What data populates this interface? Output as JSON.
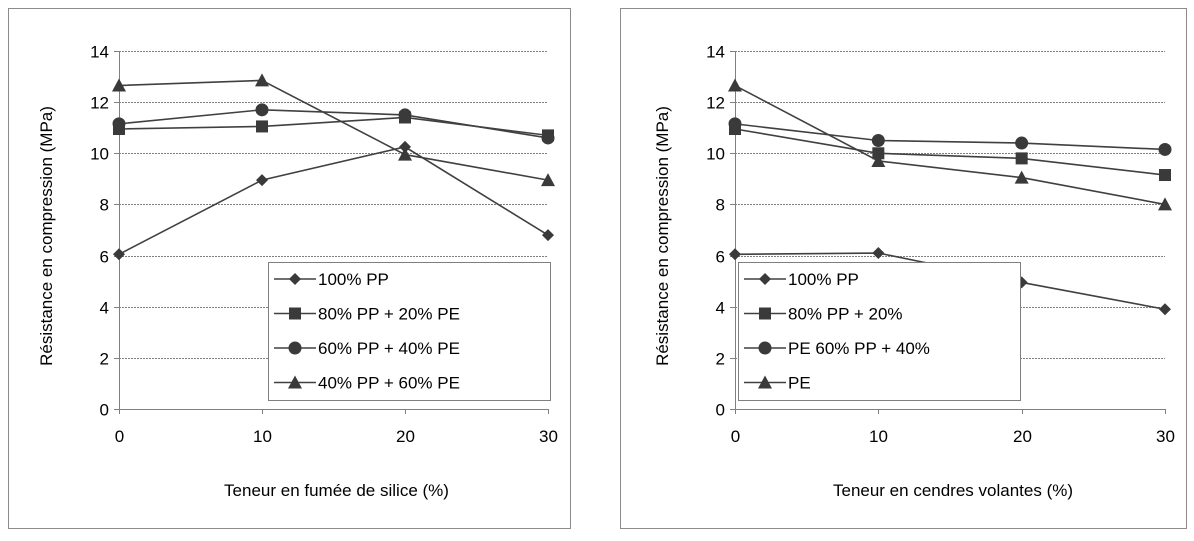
{
  "chart_data": [
    {
      "type": "line",
      "title": "",
      "xlabel": "Teneur en fumée de silice (%)",
      "ylabel": "Résistance en compression (MPa)",
      "x": [
        0,
        10,
        20,
        30
      ],
      "xlim": [
        0,
        30
      ],
      "ylim": [
        0,
        14
      ],
      "xticks": [
        "0",
        "10",
        "20",
        "30"
      ],
      "yticks": [
        "0",
        "2",
        "4",
        "6",
        "8",
        "10",
        "12",
        "14"
      ],
      "grid": "horizontal",
      "legend_position": "bottom-right",
      "series": [
        {
          "name": "100% PP",
          "marker": "diamond",
          "values": [
            6.05,
            8.95,
            10.25,
            6.8
          ]
        },
        {
          "name": "80% PP + 20% PE",
          "marker": "square",
          "values": [
            10.95,
            11.05,
            11.4,
            10.7
          ]
        },
        {
          "name": "60% PP + 40% PE",
          "marker": "circle",
          "values": [
            11.15,
            11.7,
            11.5,
            10.6
          ]
        },
        {
          "name": "40% PP + 60% PE",
          "marker": "triangle",
          "values": [
            12.65,
            12.85,
            9.95,
            8.95
          ]
        }
      ]
    },
    {
      "type": "line",
      "title": "",
      "xlabel": "Teneur en cendres volantes (%)",
      "ylabel": "Résistance en compression (MPa)",
      "x": [
        0,
        10,
        20,
        30
      ],
      "xlim": [
        0,
        30
      ],
      "ylim": [
        0,
        14
      ],
      "xticks": [
        "0",
        "10",
        "20",
        "30"
      ],
      "yticks": [
        "0",
        "2",
        "4",
        "6",
        "8",
        "10",
        "12",
        "14"
      ],
      "grid": "horizontal",
      "legend_position": "bottom-left",
      "series": [
        {
          "name": "100% PP",
          "marker": "diamond",
          "values": [
            6.05,
            6.1,
            4.95,
            3.9
          ]
        },
        {
          "name": "80% PP + 20%",
          "marker": "square",
          "values": [
            10.95,
            10.0,
            9.8,
            9.15
          ]
        },
        {
          "name": "PE 60% PP + 40%",
          "marker": "circle",
          "values": [
            11.15,
            10.5,
            10.4,
            10.15
          ]
        },
        {
          "name": "PE",
          "marker": "triangle",
          "values": [
            12.65,
            9.7,
            9.05,
            8.0
          ]
        }
      ]
    }
  ],
  "colors": {
    "line": "#404040",
    "marker": "#3a3a3a",
    "grid": "#7f7f7f",
    "frame": "#8c8c8c"
  }
}
